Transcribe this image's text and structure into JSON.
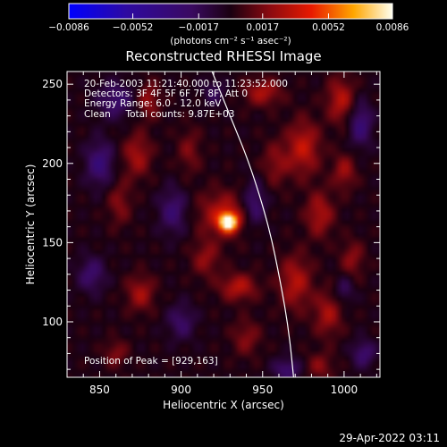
{
  "chart_data": {
    "type": "heatmap",
    "title": "Reconstructed RHESSI Image",
    "xlabel": "Heliocentric X (arcsec)",
    "ylabel": "Heliocentric Y (arcsec)",
    "xlim": [
      830,
      1022
    ],
    "ylim": [
      65,
      258
    ],
    "x_ticks": [
      850,
      900,
      950,
      1000
    ],
    "y_ticks": [
      100,
      150,
      200,
      250
    ],
    "colorbar": {
      "min": -0.0086,
      "max": 0.0086,
      "tick_values": [
        -0.0086,
        -0.0052,
        -0.0017,
        0.0017,
        0.0052,
        0.0086
      ],
      "tick_labels": [
        "−0.0086",
        "−0.0052",
        "−0.0017",
        "0.0017",
        "0.0052",
        "0.0086"
      ],
      "unit_label": "(photons cm⁻² s⁻¹ asec⁻²)"
    },
    "info_lines": [
      "20-Feb-2003 11:21:40.000 to 11:23:52.000",
      "Detectors: 3F 4F 5F 6F 7F 8F, Att 0",
      "Energy Range: 6.0 - 12.0 keV",
      "Clean     Total counts: 9.87E+03"
    ],
    "peak_label": "Position of Peak = [929,163]",
    "peak": {
      "x": 929,
      "y": 163,
      "value": 0.0086
    },
    "limb_curve": [
      [
        919,
        258
      ],
      [
        930,
        230
      ],
      [
        942,
        200
      ],
      [
        954,
        160
      ],
      [
        961,
        125
      ],
      [
        966,
        95
      ],
      [
        969,
        65
      ]
    ],
    "sources": [
      {
        "x": 929,
        "y": 163,
        "amp": 1.0,
        "sx": 4,
        "sy": 4
      },
      {
        "x": 925,
        "y": 168,
        "amp": 0.35,
        "sx": 10,
        "sy": 10
      },
      {
        "x": 873,
        "y": 205,
        "amp": 0.3,
        "sx": 6,
        "sy": 10
      },
      {
        "x": 880,
        "y": 240,
        "amp": 0.28,
        "sx": 5,
        "sy": 8
      },
      {
        "x": 862,
        "y": 175,
        "amp": 0.22,
        "sx": 5,
        "sy": 10
      },
      {
        "x": 875,
        "y": 118,
        "amp": 0.3,
        "sx": 6,
        "sy": 8
      },
      {
        "x": 860,
        "y": 80,
        "amp": 0.22,
        "sx": 5,
        "sy": 6
      },
      {
        "x": 935,
        "y": 122,
        "amp": 0.35,
        "sx": 8,
        "sy": 6
      },
      {
        "x": 915,
        "y": 140,
        "amp": 0.25,
        "sx": 6,
        "sy": 8
      },
      {
        "x": 940,
        "y": 90,
        "amp": 0.22,
        "sx": 6,
        "sy": 8
      },
      {
        "x": 905,
        "y": 208,
        "amp": 0.2,
        "sx": 5,
        "sy": 10
      },
      {
        "x": 950,
        "y": 245,
        "amp": 0.32,
        "sx": 8,
        "sy": 6
      },
      {
        "x": 958,
        "y": 200,
        "amp": 0.22,
        "sx": 6,
        "sy": 10
      },
      {
        "x": 975,
        "y": 210,
        "amp": 0.38,
        "sx": 7,
        "sy": 12
      },
      {
        "x": 985,
        "y": 168,
        "amp": 0.32,
        "sx": 6,
        "sy": 10
      },
      {
        "x": 998,
        "y": 240,
        "amp": 0.35,
        "sx": 6,
        "sy": 10
      },
      {
        "x": 1000,
        "y": 195,
        "amp": 0.28,
        "sx": 5,
        "sy": 8
      },
      {
        "x": 970,
        "y": 125,
        "amp": 0.34,
        "sx": 7,
        "sy": 12
      },
      {
        "x": 990,
        "y": 105,
        "amp": 0.3,
        "sx": 6,
        "sy": 10
      },
      {
        "x": 1005,
        "y": 140,
        "amp": 0.24,
        "sx": 5,
        "sy": 8
      },
      {
        "x": 985,
        "y": 72,
        "amp": 0.22,
        "sx": 6,
        "sy": 6
      },
      {
        "x": 860,
        "y": 240,
        "amp": -0.3,
        "sx": 8,
        "sy": 8
      },
      {
        "x": 850,
        "y": 200,
        "amp": -0.35,
        "sx": 6,
        "sy": 10
      },
      {
        "x": 895,
        "y": 170,
        "amp": -0.3,
        "sx": 6,
        "sy": 10
      },
      {
        "x": 845,
        "y": 130,
        "amp": -0.28,
        "sx": 6,
        "sy": 8
      },
      {
        "x": 900,
        "y": 100,
        "amp": -0.25,
        "sx": 6,
        "sy": 8
      },
      {
        "x": 945,
        "y": 175,
        "amp": -0.3,
        "sx": 5,
        "sy": 10
      },
      {
        "x": 1010,
        "y": 225,
        "amp": -0.35,
        "sx": 5,
        "sy": 10
      },
      {
        "x": 965,
        "y": 70,
        "amp": -0.3,
        "sx": 6,
        "sy": 5
      },
      {
        "x": 1012,
        "y": 80,
        "amp": -0.3,
        "sx": 5,
        "sy": 6
      },
      {
        "x": 920,
        "y": 245,
        "amp": -0.2,
        "sx": 5,
        "sy": 6
      },
      {
        "x": 1000,
        "y": 120,
        "amp": -0.22,
        "sx": 4,
        "sy": 6
      }
    ]
  },
  "footer": {
    "timestamp": "29-Apr-2022 03:11"
  }
}
